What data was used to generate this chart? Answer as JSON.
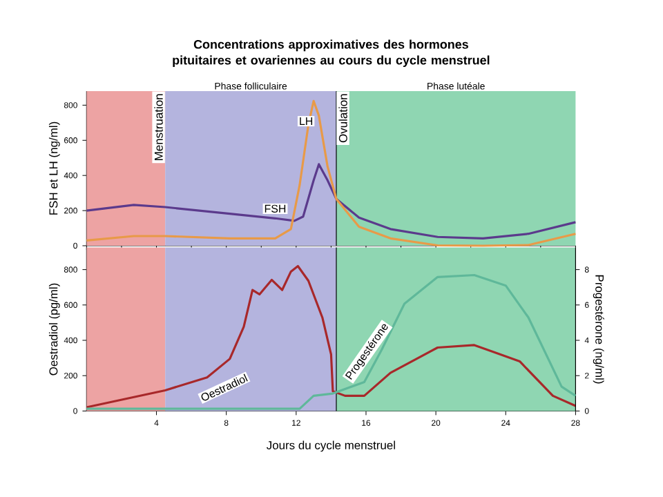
{
  "chart_data": [
    {
      "type": "line",
      "title": "Concentrations approximatives des hormones pituitaires et ovariennes au cours du cycle menstruel",
      "ylabel": "FSH et LH (ng/ml)",
      "xlim": [
        0,
        28
      ],
      "ylim": [
        0,
        880
      ],
      "yticks": [
        0,
        200,
        400,
        600,
        800
      ],
      "tick_labels": "y",
      "bands": [
        {
          "axis": "x",
          "from": 0,
          "to": 4.5,
          "label": "Menstruation",
          "color": "#eda3a3"
        },
        {
          "axis": "x",
          "from": 4.5,
          "to": 14.3,
          "label": "Phase folliculaire",
          "color": "#b4b4de"
        },
        {
          "axis": "x",
          "from": 14.3,
          "to": 28,
          "label": "Phase lutéale",
          "color": "#8fd6b2"
        }
      ],
      "ref_lines": [
        {
          "axis": "x",
          "value": 14.3,
          "label": "Ovulation"
        }
      ],
      "series": [
        {
          "name": "FSH",
          "color": "#5b3a8c",
          "x": [
            0,
            2.7,
            4.5,
            8.2,
            10.8,
            11.9,
            12.4,
            13,
            13.3,
            13.8,
            14.3,
            15.6,
            17.4,
            20.1,
            22.7,
            25.3,
            28
          ],
          "values": [
            200,
            232,
            220,
            182,
            156,
            142,
            166,
            372,
            464,
            372,
            266,
            160,
            95,
            50,
            42,
            68,
            134
          ]
        },
        {
          "name": "LH",
          "color": "#e89a48",
          "x": [
            0,
            2.7,
            4.5,
            8.2,
            10.8,
            11.7,
            12.2,
            12.7,
            13,
            13.3,
            13.8,
            14.3,
            15.6,
            17.4,
            20.1,
            22.7,
            25.3,
            28
          ],
          "values": [
            30,
            55,
            55,
            42,
            42,
            95,
            345,
            688,
            824,
            740,
            450,
            266,
            108,
            42,
            2,
            0,
            4,
            68
          ]
        }
      ]
    },
    {
      "type": "line",
      "xlabel": "Jours du cycle menstruel",
      "ylabel": "Oestradiol (pg/ml)",
      "y2label": "Progestérone (ng/ml)",
      "xlim": [
        0,
        28
      ],
      "ylim": [
        0,
        925
      ],
      "y2lim": [
        0,
        9.25
      ],
      "xticks": [
        4,
        8,
        12,
        16,
        20,
        24,
        28
      ],
      "yticks": [
        0,
        200,
        400,
        600,
        800
      ],
      "y2ticks": [
        0,
        2,
        4,
        6,
        8
      ],
      "bands": [
        {
          "axis": "x",
          "from": 0,
          "to": 4.5,
          "color": "#eda3a3"
        },
        {
          "axis": "x",
          "from": 4.5,
          "to": 14.3,
          "color": "#b4b4de"
        },
        {
          "axis": "x",
          "from": 14.3,
          "to": 28,
          "color": "#8fd6b2"
        }
      ],
      "ref_lines": [
        {
          "axis": "x",
          "value": 14.3
        }
      ],
      "series": [
        {
          "name": "Oestradiol",
          "color": "#a8282a",
          "x": [
            0,
            4.5,
            6.9,
            8.2,
            9,
            9.5,
            9.9,
            10.6,
            11.2,
            11.7,
            12.1,
            12.7,
            13.5,
            14,
            14.1,
            14.8,
            15.9,
            17.4,
            20.1,
            22.2,
            24.8,
            26.7,
            28
          ],
          "values": [
            21,
            117,
            190,
            295,
            477,
            685,
            660,
            742,
            685,
            789,
            820,
            737,
            529,
            320,
            112,
            86,
            86,
            216,
            359,
            373,
            281,
            86,
            29
          ]
        },
        {
          "name": "Progestérone",
          "color": "#5fb89a",
          "axis": "y2",
          "x": [
            0,
            4.5,
            8.2,
            12.2,
            13,
            14.1,
            15.9,
            16.9,
            18.2,
            20.1,
            22.2,
            24,
            25.3,
            27.2,
            28
          ],
          "values": [
            0.13,
            0.13,
            0.13,
            0.13,
            0.86,
            0.99,
            1.64,
            3.47,
            6.07,
            7.58,
            7.69,
            7.1,
            5.29,
            1.38,
            0.86
          ]
        }
      ]
    }
  ]
}
